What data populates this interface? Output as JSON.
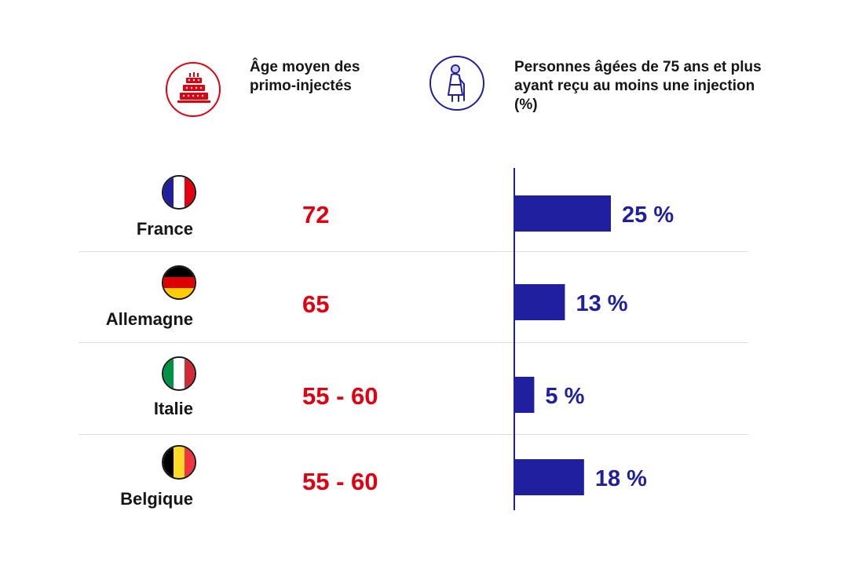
{
  "header": {
    "age_title": "Âge moyen des primo-injectés",
    "injection_title": "Personnes âgées de 75 ans et plus ayant reçu au moins une injection (%)",
    "age_icon": "birthday-cake-icon",
    "injection_icon": "elderly-person-icon"
  },
  "colors": {
    "age_accent": "#e1000f",
    "bar_color": "#1f1fa0",
    "text": "#161616"
  },
  "countries": [
    {
      "name": "France",
      "flag_icon": "france-flag-icon",
      "age": "72",
      "pct_label": "25 %"
    },
    {
      "name": "Allemagne",
      "flag_icon": "germany-flag-icon",
      "age": "65",
      "pct_label": "13 %"
    },
    {
      "name": "Italie",
      "flag_icon": "italy-flag-icon",
      "age": "55 - 60",
      "pct_label": "5 %"
    },
    {
      "name": "Belgique",
      "flag_icon": "belgium-flag-icon",
      "age": "55 - 60",
      "pct_label": "18 %"
    }
  ],
  "chart_data": {
    "type": "bar",
    "orientation": "horizontal",
    "categories": [
      "France",
      "Allemagne",
      "Italie",
      "Belgique"
    ],
    "values": [
      25,
      13,
      5,
      18
    ],
    "data_labels": [
      "25 %",
      "13 %",
      "5 %",
      "18 %"
    ],
    "title": "Personnes âgées de 75 ans et plus ayant reçu au moins une injection (%)",
    "xlim": [
      0,
      25
    ],
    "grid": false,
    "legend": "none"
  }
}
